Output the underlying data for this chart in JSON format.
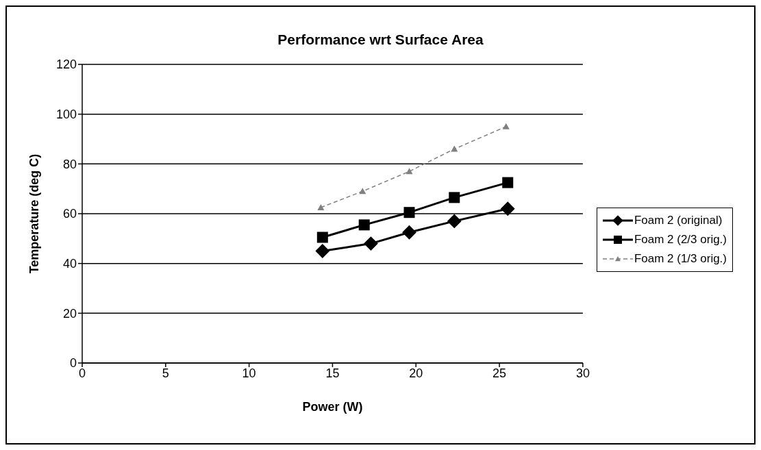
{
  "chart_data": {
    "type": "line",
    "title": "Performance wrt Surface Area",
    "xlabel": "Power (W)",
    "ylabel": "Temperature (deg C)",
    "xlim": [
      0,
      30
    ],
    "xticks": [
      0,
      5,
      10,
      15,
      20,
      25,
      30
    ],
    "ylim": [
      0,
      120
    ],
    "yticks": [
      0,
      20,
      40,
      60,
      80,
      100,
      120
    ],
    "grid": "y",
    "legend": "right",
    "series": [
      {
        "name": "Foam 2 (original)",
        "color": "#000000",
        "marker": "diamond",
        "line_style": "solid",
        "x": [
          14.4,
          17.3,
          19.6,
          22.3,
          25.5
        ],
        "values": [
          45,
          48,
          52.5,
          57,
          62
        ]
      },
      {
        "name": "Foam 2 (2/3 orig.)",
        "color": "#000000",
        "marker": "square",
        "line_style": "solid",
        "x": [
          14.4,
          16.9,
          19.6,
          22.3,
          25.5
        ],
        "values": [
          50.5,
          55.5,
          60.5,
          66.5,
          72.5
        ]
      },
      {
        "name": "Foam 2 (1/3 orig.)",
        "color": "#808080",
        "marker": "triangle",
        "line_style": "dashed",
        "x": [
          14.3,
          16.8,
          19.6,
          22.3,
          25.4
        ],
        "values": [
          62.5,
          69,
          77,
          86,
          95
        ]
      }
    ]
  }
}
